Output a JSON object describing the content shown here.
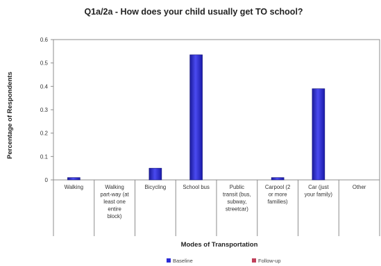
{
  "chart_data": {
    "type": "bar",
    "title": "Q1a/2a - How does your child usually get TO school?",
    "xlabel": "Modes of Transportation",
    "ylabel": "Percentage of Respondents",
    "ylim": [
      0,
      0.6
    ],
    "yticks": [
      "0",
      "0.1",
      "0.2",
      "0.3",
      "0.4",
      "0.5",
      "0.6"
    ],
    "categories": [
      [
        "Walking"
      ],
      [
        "Walking",
        "part-way (at",
        "least one",
        "entire",
        "block)"
      ],
      [
        "Bicycling"
      ],
      [
        "School bus"
      ],
      [
        "Public",
        "transit (bus,",
        "subway,",
        "streetcar)"
      ],
      [
        "Carpool (2",
        "or more",
        "families)"
      ],
      [
        "Car (just",
        "your family)"
      ],
      [
        "Other"
      ]
    ],
    "series": [
      {
        "name": "Baseline",
        "color": "#2b2bd6",
        "values": [
          0.01,
          0,
          0.05,
          0.535,
          0,
          0.01,
          0.39,
          0
        ]
      },
      {
        "name": "Follow-up",
        "color": "#c0405a",
        "values": [
          0,
          0,
          0,
          0,
          0,
          0,
          0,
          0
        ]
      }
    ],
    "grid": false,
    "legend_position": "bottom"
  }
}
